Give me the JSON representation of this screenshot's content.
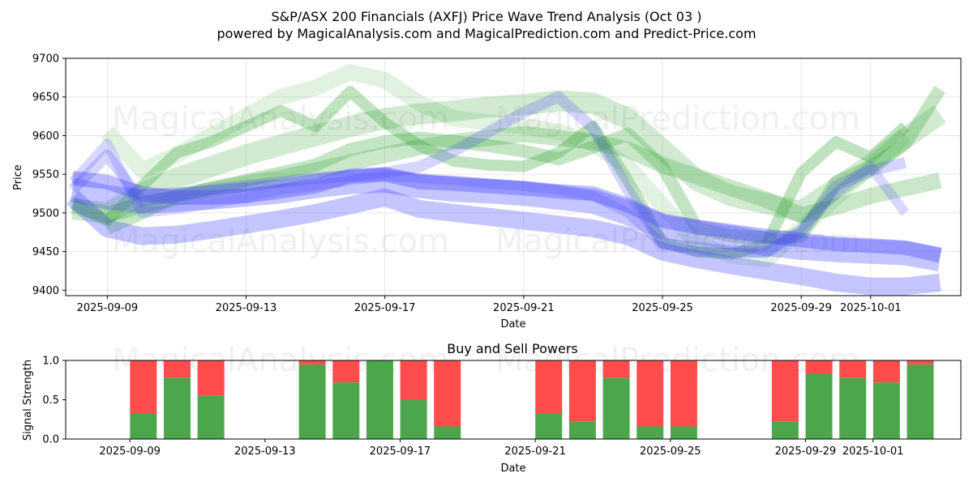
{
  "title": "S&P/ASX 200 Financials (AXFJ) Price Wave Trend Analysis (Oct 03 )",
  "subtitle": "powered by MagicalAnalysis.com and MagicalPrediction.com and Predict-Price.com",
  "watermarks": [
    "MagicalAnalysis.com",
    "MagicalPrediction.com",
    "MagicalAnalysis.com",
    "MagicalPrediction.com",
    "MagicalAnalysis.com",
    "MagicalPrediction.com"
  ],
  "colors": {
    "green": "#2ca02c",
    "blue": "#3f3fff",
    "buy": "#4ca64c",
    "sell": "#ff4c4c"
  },
  "chart_data": [
    {
      "type": "area",
      "title": "",
      "xlabel": "Date",
      "ylabel": "Price",
      "x_ticks": [
        "2025-09-09",
        "2025-09-13",
        "2025-09-17",
        "2025-09-21",
        "2025-09-25",
        "2025-09-29",
        "2025-10-01"
      ],
      "x_tick_days": [
        1,
        5,
        9,
        13,
        17,
        21,
        23
      ],
      "y_ticks": [
        9400,
        9450,
        9500,
        9550,
        9600,
        9650,
        9700
      ],
      "xlim_days": [
        -0.2,
        25.6
      ],
      "ylim": [
        9393,
        9700
      ],
      "series": [
        {
          "name": "green band 1",
          "color": "green",
          "x": [
            0,
            1,
            2,
            3,
            4,
            5,
            6,
            7,
            8,
            9,
            10,
            11,
            12,
            13,
            14,
            15,
            16,
            17,
            18,
            19,
            20,
            21,
            22,
            23,
            24,
            25
          ],
          "y": [
            9510,
            9498,
            9510,
            9520,
            9530,
            9538,
            9545,
            9555,
            9565,
            9575,
            9585,
            9592,
            9597,
            9602,
            9597,
            9592,
            9582,
            9562,
            9547,
            9532,
            9517,
            9497,
            9508,
            9522,
            9532,
            9542
          ],
          "width": 20,
          "alpha": 0.25
        },
        {
          "name": "green band 2",
          "color": "green",
          "x": [
            0,
            1,
            2,
            3,
            4,
            5,
            6,
            7,
            8,
            9,
            10,
            11,
            12,
            13,
            14,
            15,
            16,
            17,
            18,
            19,
            20,
            21,
            22,
            23,
            24,
            25
          ],
          "y": [
            9505,
            9500,
            9525,
            9545,
            9560,
            9575,
            9588,
            9600,
            9612,
            9622,
            9628,
            9632,
            9637,
            9640,
            9645,
            9642,
            9622,
            9582,
            9542,
            9522,
            9512,
            9502,
            9532,
            9562,
            9597,
            9628
          ],
          "width": 26,
          "alpha": 0.22
        },
        {
          "name": "green band 3",
          "color": "green",
          "x": [
            1,
            2,
            3,
            4,
            5,
            6,
            7,
            8,
            9,
            10,
            11,
            12,
            13,
            14,
            15,
            16,
            17,
            18,
            19,
            20,
            21,
            22,
            23,
            24
          ],
          "y": [
            9605,
            9555,
            9575,
            9600,
            9625,
            9650,
            9662,
            9682,
            9672,
            9642,
            9622,
            9617,
            9612,
            9605,
            9590,
            9560,
            9510,
            9460,
            9445,
            9440,
            9480,
            9520,
            9560,
            9600
          ],
          "width": 20,
          "alpha": 0.14
        },
        {
          "name": "green band 4",
          "color": "green",
          "x": [
            1,
            2,
            3,
            4,
            5,
            6,
            7,
            8,
            9,
            10,
            11,
            12,
            13,
            14,
            15,
            16,
            17,
            18,
            19,
            20,
            21,
            22,
            23,
            24,
            25
          ],
          "y": [
            9480,
            9500,
            9522,
            9532,
            9542,
            9552,
            9562,
            9582,
            9592,
            9597,
            9592,
            9587,
            9580,
            9570,
            9585,
            9602,
            9560,
            9480,
            9470,
            9468,
            9470,
            9540,
            9560,
            9590,
            9660
          ],
          "width": 16,
          "alpha": 0.28
        },
        {
          "name": "green band 5",
          "color": "green",
          "x": [
            0,
            1,
            2,
            3,
            4,
            5,
            6,
            7,
            8,
            9,
            10,
            11,
            12,
            13,
            14,
            15,
            16,
            17,
            18,
            19,
            20,
            21,
            22,
            23,
            24
          ],
          "y": [
            9512,
            9490,
            9535,
            9578,
            9592,
            9612,
            9632,
            9612,
            9657,
            9617,
            9587,
            9567,
            9562,
            9560,
            9578,
            9612,
            9542,
            9462,
            9450,
            9447,
            9460,
            9552,
            9592,
            9572,
            9612
          ],
          "width": 14,
          "alpha": 0.3
        }
      ],
      "series_blue": [
        {
          "name": "blue band 1",
          "color": "blue",
          "x": [
            0,
            1,
            2,
            3,
            4,
            5,
            6,
            7,
            8,
            9,
            10,
            11,
            12,
            13,
            14,
            15,
            16,
            17,
            18,
            19,
            20,
            21,
            22,
            23,
            24,
            25
          ],
          "y": [
            9530,
            9520,
            9515,
            9517,
            9520,
            9524,
            9528,
            9535,
            9540,
            9542,
            9535,
            9530,
            9528,
            9525,
            9520,
            9515,
            9500,
            9482,
            9475,
            9468,
            9460,
            9455,
            9452,
            9450,
            9448,
            9440
          ],
          "width": 30,
          "alpha": 0.3
        },
        {
          "name": "blue band 2",
          "color": "blue",
          "x": [
            0,
            1,
            2,
            3,
            4,
            5,
            6,
            7,
            8,
            9,
            10,
            11,
            12,
            13,
            14,
            15,
            16,
            17,
            18,
            19,
            20,
            21,
            22,
            23,
            24,
            25
          ],
          "y": [
            9545,
            9540,
            9525,
            9520,
            9520,
            9522,
            9528,
            9535,
            9548,
            9550,
            9540,
            9538,
            9535,
            9532,
            9528,
            9525,
            9510,
            9490,
            9482,
            9476,
            9470,
            9465,
            9460,
            9458,
            9455,
            9445
          ],
          "width": 18,
          "alpha": 0.35
        },
        {
          "name": "blue band 3",
          "color": "blue",
          "x": [
            0,
            1,
            2,
            3,
            4,
            5,
            6,
            7,
            8,
            9,
            10,
            11,
            12,
            13,
            14,
            15,
            16,
            17,
            18,
            19,
            20,
            21,
            22,
            23,
            24,
            25
          ],
          "y": [
            9520,
            9480,
            9470,
            9472,
            9478,
            9485,
            9492,
            9500,
            9510,
            9520,
            9505,
            9500,
            9495,
            9490,
            9485,
            9480,
            9470,
            9450,
            9440,
            9432,
            9425,
            9418,
            9410,
            9405,
            9405,
            9410
          ],
          "width": 22,
          "alpha": 0.3
        },
        {
          "name": "blue band 4",
          "color": "blue",
          "x": [
            0,
            1,
            2,
            3,
            4,
            5,
            6,
            7,
            8,
            9,
            10,
            11,
            12,
            13,
            14,
            15,
            16,
            17,
            18,
            19,
            20,
            21,
            22,
            23,
            24
          ],
          "y": [
            9530,
            9575,
            9515,
            9522,
            9530,
            9535,
            9540,
            9545,
            9548,
            9552,
            9560,
            9580,
            9605,
            9630,
            9650,
            9610,
            9530,
            9460,
            9455,
            9450,
            9450,
            9475,
            9535,
            9555,
            9565
          ],
          "width": 14,
          "alpha": 0.22
        },
        {
          "name": "blue band 5",
          "color": "blue",
          "x": [
            0,
            1,
            2,
            3,
            4,
            5,
            6,
            7,
            8,
            9,
            10,
            11,
            12,
            13,
            14,
            15,
            16,
            17,
            18,
            19,
            20,
            21,
            22,
            23,
            24
          ],
          "y": [
            9540,
            9590,
            9500,
            9505,
            9512,
            9520,
            9530,
            9535,
            9542,
            9548,
            9545,
            9542,
            9538,
            9535,
            9530,
            9522,
            9500,
            9460,
            9450,
            9448,
            9448,
            9480,
            9525,
            9560,
            9500
          ],
          "width": 12,
          "alpha": 0.2
        }
      ]
    },
    {
      "type": "bar",
      "title": "Buy and Sell Powers",
      "xlabel": "Date",
      "ylabel": "Signal Strength",
      "x_ticks": [
        "2025-09-09",
        "2025-09-13",
        "2025-09-17",
        "2025-09-21",
        "2025-09-25",
        "2025-09-29",
        "2025-10-01"
      ],
      "x_tick_days": [
        1,
        5,
        9,
        13,
        17,
        21,
        23
      ],
      "y_ticks": [
        "0.0",
        "0.5",
        "1.0"
      ],
      "ylim": [
        0,
        1
      ],
      "bars": [
        {
          "day": 1.4,
          "buy": 0.33,
          "sell": 0.67
        },
        {
          "day": 2.4,
          "buy": 0.78,
          "sell": 0.22
        },
        {
          "day": 3.4,
          "buy": 0.55,
          "sell": 0.45
        },
        {
          "day": 6.4,
          "buy": 0.95,
          "sell": 0.05
        },
        {
          "day": 7.4,
          "buy": 0.72,
          "sell": 0.28
        },
        {
          "day": 8.4,
          "buy": 1.0,
          "sell": 0.0
        },
        {
          "day": 9.4,
          "buy": 0.5,
          "sell": 0.5
        },
        {
          "day": 10.4,
          "buy": 0.16,
          "sell": 0.84
        },
        {
          "day": 13.4,
          "buy": 0.33,
          "sell": 0.67
        },
        {
          "day": 14.4,
          "buy": 0.22,
          "sell": 0.78
        },
        {
          "day": 15.4,
          "buy": 0.78,
          "sell": 0.22
        },
        {
          "day": 16.4,
          "buy": 0.16,
          "sell": 0.84
        },
        {
          "day": 17.4,
          "buy": 0.16,
          "sell": 0.84
        },
        {
          "day": 20.4,
          "buy": 0.22,
          "sell": 0.78
        },
        {
          "day": 21.4,
          "buy": 0.83,
          "sell": 0.17
        },
        {
          "day": 22.4,
          "buy": 0.78,
          "sell": 0.22
        },
        {
          "day": 23.4,
          "buy": 0.72,
          "sell": 0.28
        },
        {
          "day": 24.4,
          "buy": 0.95,
          "sell": 0.05
        }
      ]
    }
  ]
}
